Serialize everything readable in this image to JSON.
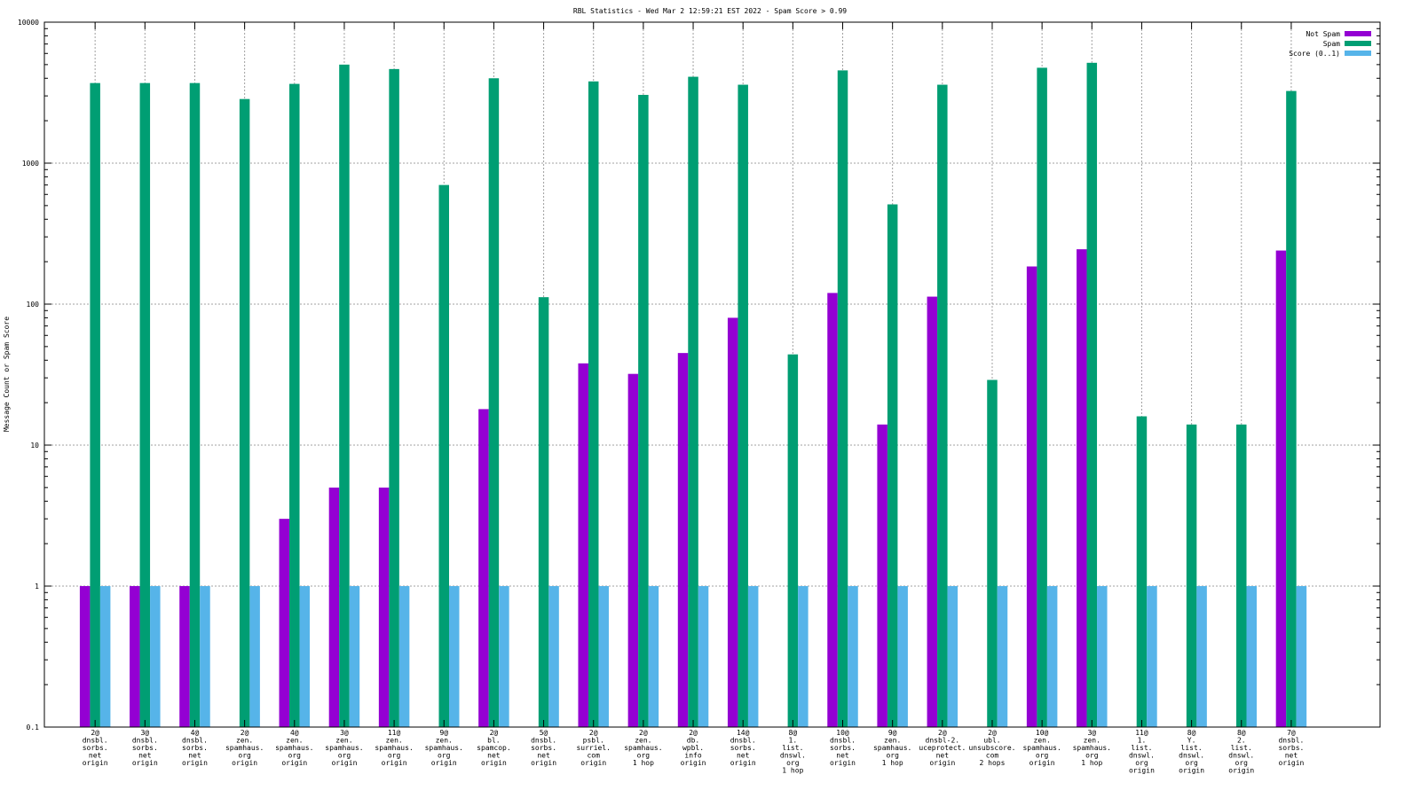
{
  "chart_data": {
    "type": "bar",
    "title": "RBL Statistics - Wed Mar  2 12:59:21 EST 2022 - Spam Score > 0.99",
    "xlabel": "",
    "ylabel": "Message Count or Spam Score",
    "yscale": "log",
    "ylim": [
      0.1,
      10000
    ],
    "y_ticks": [
      0.1,
      1,
      10,
      100,
      1000,
      10000
    ],
    "y_tick_labels": [
      "0.1",
      "1",
      "10",
      "100",
      "1000",
      "10000"
    ],
    "grid": true,
    "legend_position": "top-right",
    "categories": [
      [
        "2@",
        "dnsbl.",
        "sorbs.",
        "net",
        "origin"
      ],
      [
        "3@",
        "dnsbl.",
        "sorbs.",
        "net",
        "origin"
      ],
      [
        "4@",
        "dnsbl.",
        "sorbs.",
        "net",
        "origin"
      ],
      [
        "2@",
        "zen.",
        "spamhaus.",
        "org",
        "origin"
      ],
      [
        "4@",
        "zen.",
        "spamhaus.",
        "org",
        "origin"
      ],
      [
        "3@",
        "zen.",
        "spamhaus.",
        "org",
        "origin"
      ],
      [
        "11@",
        "zen.",
        "spamhaus.",
        "org",
        "origin"
      ],
      [
        "9@",
        "zen.",
        "spamhaus.",
        "org",
        "origin"
      ],
      [
        "2@",
        "bl.",
        "spamcop.",
        "net",
        "origin"
      ],
      [
        "5@",
        "dnsbl.",
        "sorbs.",
        "net",
        "origin"
      ],
      [
        "2@",
        "psbl.",
        "surriel.",
        "com",
        "origin"
      ],
      [
        "2@",
        "zen.",
        "spamhaus.",
        "org",
        "1 hop"
      ],
      [
        "2@",
        "db.",
        "wpbl.",
        "info",
        "origin"
      ],
      [
        "14@",
        "dnsbl.",
        "sorbs.",
        "net",
        "origin"
      ],
      [
        "8@",
        "1.",
        "list.",
        "dnswl.",
        "org",
        "1 hop"
      ],
      [
        "10@",
        "dnsbl.",
        "sorbs.",
        "net",
        "origin"
      ],
      [
        "9@",
        "zen.",
        "spamhaus.",
        "org",
        "1 hop"
      ],
      [
        "2@",
        "dnsbl-2.",
        "uceprotect.",
        "net",
        "origin"
      ],
      [
        "2@",
        "ubl.",
        "unsubscore.",
        "com",
        "2 hops"
      ],
      [
        "10@",
        "zen.",
        "spamhaus.",
        "org",
        "origin"
      ],
      [
        "3@",
        "zen.",
        "spamhaus.",
        "org",
        "1 hop"
      ],
      [
        "11@",
        "1.",
        "list.",
        "dnswl.",
        "org",
        "origin"
      ],
      [
        "8@",
        "Y.",
        "list.",
        "dnswl.",
        "org",
        "origin"
      ],
      [
        "8@",
        "2.",
        "list.",
        "dnswl.",
        "org",
        "origin"
      ],
      [
        "7@",
        "dnsbl.",
        "sorbs.",
        "net",
        "origin"
      ]
    ],
    "series": [
      {
        "name": "Not Spam",
        "color": "#9400d3",
        "values": [
          1,
          1,
          1,
          null,
          3,
          5,
          5,
          null,
          18,
          null,
          38,
          32,
          45,
          80,
          null,
          120,
          14,
          113,
          null,
          185,
          245,
          null,
          null,
          null,
          240
        ]
      },
      {
        "name": "Spam",
        "color": "#009e73",
        "values": [
          3700,
          3700,
          3700,
          2850,
          3650,
          5000,
          4650,
          700,
          4000,
          112,
          3800,
          3050,
          4100,
          3600,
          44,
          4550,
          510,
          3600,
          29,
          4750,
          5150,
          16,
          14,
          14,
          3250
        ]
      },
      {
        "name": "Score (0..1)",
        "color": "#56b4e9",
        "values": [
          1,
          1,
          1,
          1,
          1,
          1,
          1,
          1,
          1,
          1,
          1,
          1,
          1,
          1,
          1,
          1,
          1,
          1,
          1,
          1,
          1,
          1,
          1,
          1,
          1
        ]
      }
    ]
  }
}
